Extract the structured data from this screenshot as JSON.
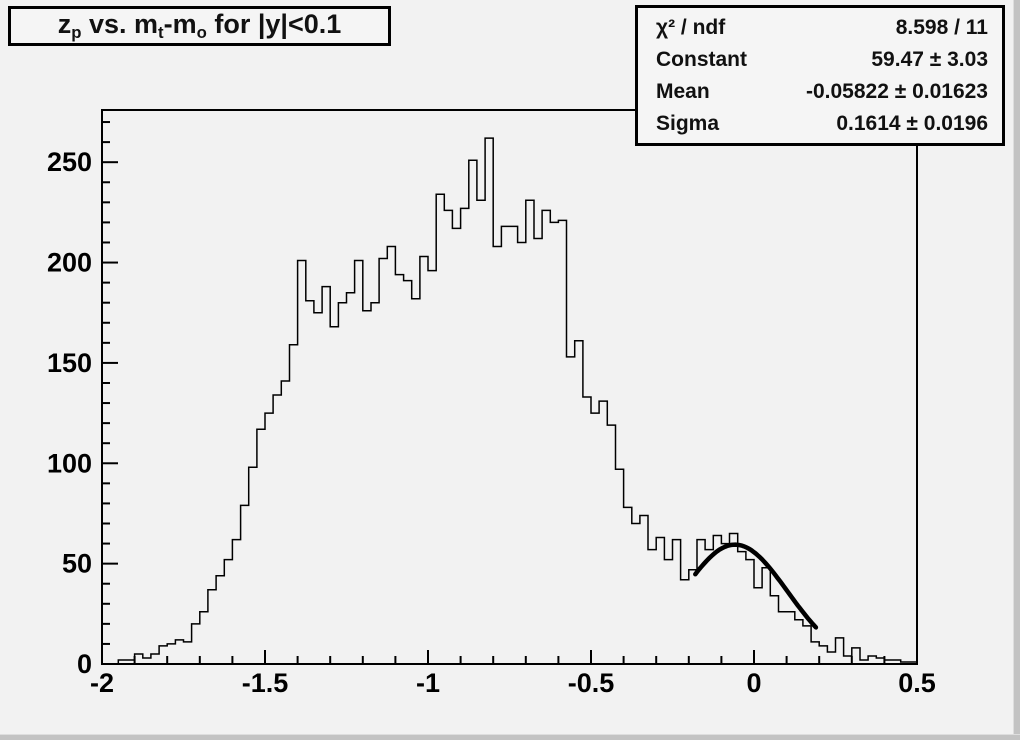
{
  "canvas": {
    "background": "#f2f2f2",
    "bevel_color": "#c3c3c3",
    "line_color": "#000000"
  },
  "title_box": {
    "plain": "z_p vs. m_t-m_o for |y|<0.1",
    "segments": [
      {
        "t": "z"
      },
      {
        "s": "p"
      },
      {
        "t": " vs. m"
      },
      {
        "s": "t"
      },
      {
        "t": "-m"
      },
      {
        "s": "o"
      },
      {
        "t": " for |y|<0.1"
      }
    ]
  },
  "stats_box": {
    "rows": [
      {
        "label": "χ² / ndf",
        "value": "8.598 / 11"
      },
      {
        "label": "Constant",
        "value": "59.47 ± 3.03"
      },
      {
        "label": "Mean",
        "value": "-0.05822 ± 0.01623"
      },
      {
        "label": "Sigma",
        "value": "0.1614 ± 0.0196"
      }
    ]
  },
  "chart_data": {
    "type": "bar",
    "style": "root-histogram-step",
    "title": "z_p vs. m_t-m_o for |y|<0.1",
    "xlabel": "",
    "ylabel": "",
    "xlim": [
      -2,
      0.5
    ],
    "ylim": [
      0,
      276
    ],
    "grid": false,
    "legend": false,
    "bins": {
      "start": -2,
      "width": 0.025,
      "count": 100
    },
    "values": [
      0,
      0,
      2,
      2,
      5,
      3,
      5,
      9,
      10,
      12,
      11,
      20,
      26,
      37,
      44,
      52,
      62,
      79,
      98,
      117,
      125,
      134,
      141,
      159,
      201,
      181,
      175,
      188,
      168,
      180,
      185,
      201,
      176,
      180,
      202,
      208,
      194,
      191,
      182,
      203,
      196,
      234,
      226,
      217,
      227,
      251,
      231,
      262,
      208,
      218,
      218,
      210,
      231,
      212,
      226,
      220,
      221,
      153,
      161,
      133,
      125,
      131,
      119,
      97,
      78,
      70,
      74,
      57,
      63,
      52,
      62,
      42,
      47,
      62,
      57,
      64,
      60,
      65,
      56,
      52,
      38,
      48,
      34,
      26,
      26,
      22,
      19,
      11,
      9,
      6,
      13,
      4,
      8,
      2,
      4,
      3,
      2,
      2,
      1,
      1
    ],
    "x_major_ticks": [
      -2,
      -1.5,
      -1,
      -0.5,
      0,
      0.5
    ],
    "x_tick_labels": [
      "-2",
      "-1.5",
      "-1",
      "-0.5",
      "0",
      "0.5"
    ],
    "x_minor_step": 0.1,
    "y_major_ticks": [
      0,
      50,
      100,
      150,
      200,
      250
    ],
    "y_tick_labels": [
      "0",
      "50",
      "100",
      "150",
      "200",
      "250"
    ],
    "y_minor_step": 10,
    "fit": {
      "type": "gaussian",
      "constant": 59.47,
      "mean": -0.05822,
      "sigma": 0.1614,
      "range": [
        -0.18,
        0.19
      ]
    }
  }
}
